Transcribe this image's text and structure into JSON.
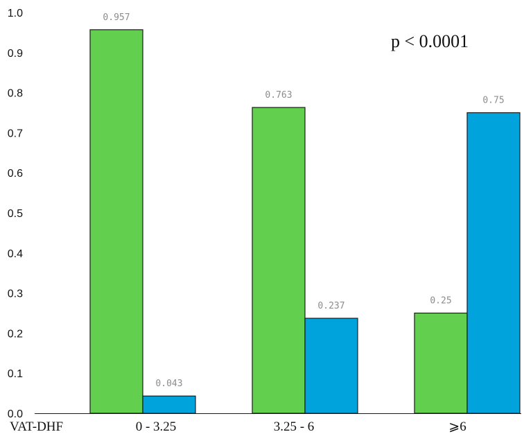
{
  "chart_data": {
    "type": "bar",
    "categories": [
      "0 - 3.25",
      "3.25 - 6",
      "⩾6"
    ],
    "series": [
      {
        "color": "#63cf4f",
        "values": [
          0.957,
          0.763,
          0.25
        ]
      },
      {
        "color": "#00a3dc",
        "values": [
          0.043,
          0.237,
          0.75
        ]
      }
    ],
    "data_labels": [
      [
        "0.957",
        "0.763",
        "0.25"
      ],
      [
        "0.043",
        "0.237",
        "0.75"
      ]
    ],
    "xlabel": "VAT-DHF",
    "ylim": [
      0,
      1
    ],
    "yticks": [
      "0.0",
      "0.1",
      "0.2",
      "0.3",
      "0.4",
      "0.5",
      "0.6",
      "0.7",
      "0.8",
      "0.9",
      "1.0"
    ],
    "annotation": "p < 0.0001",
    "grid": false,
    "legend": "none"
  }
}
